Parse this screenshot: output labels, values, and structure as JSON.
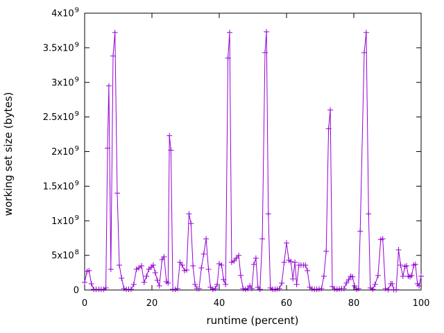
{
  "figure": {
    "background": "#ffffff",
    "axis_color": "#000000",
    "text_color": "#000000",
    "line_color": "#9400d3"
  },
  "chart_data": {
    "type": "line",
    "style": "linespoints",
    "marker": "plus",
    "grid": false,
    "legend": "none",
    "title": "",
    "xlabel": "runtime (percent)",
    "ylabel": "working set size (bytes)",
    "xlim": [
      0,
      100
    ],
    "ylim": [
      0,
      4000000000.0
    ],
    "x_ticks": [
      {
        "value": 0,
        "label": "0"
      },
      {
        "value": 20,
        "label": "20"
      },
      {
        "value": 40,
        "label": "40"
      },
      {
        "value": 60,
        "label": "60"
      },
      {
        "value": 80,
        "label": "80"
      },
      {
        "value": 100,
        "label": "100"
      }
    ],
    "y_ticks": [
      {
        "value": 0,
        "label": "0"
      },
      {
        "value": 500000000.0,
        "label": "5x10^8"
      },
      {
        "value": 1000000000.0,
        "label": "1x10^9"
      },
      {
        "value": 1500000000.0,
        "label": "1.5x10^9"
      },
      {
        "value": 2000000000.0,
        "label": "2x10^9"
      },
      {
        "value": 2500000000.0,
        "label": "2.5x10^9"
      },
      {
        "value": 3000000000.0,
        "label": "3x10^9"
      },
      {
        "value": 3500000000.0,
        "label": "3.5x10^9"
      },
      {
        "value": 4000000000.0,
        "label": "4x10^9"
      }
    ],
    "series": [
      {
        "points": [
          [
            0.0,
            110000000.0
          ],
          [
            0.7,
            270000000.0
          ],
          [
            1.3,
            280000000.0
          ],
          [
            2.0,
            90000000.0
          ],
          [
            2.7,
            10000000.0
          ],
          [
            3.4,
            10000000.0
          ],
          [
            4.2,
            10000000.0
          ],
          [
            4.9,
            10000000.0
          ],
          [
            5.7,
            10000000.0
          ],
          [
            6.3,
            30000000.0
          ],
          [
            6.8,
            2050000000.0
          ],
          [
            7.2,
            2950000000.0
          ],
          [
            7.8,
            300000000.0
          ],
          [
            8.45,
            3380000000.0
          ],
          [
            9.0,
            3720000000.0
          ],
          [
            9.7,
            1400000000.0
          ],
          [
            10.3,
            360000000.0
          ],
          [
            11.0,
            170000000.0
          ],
          [
            11.7,
            20000000.0
          ],
          [
            12.4,
            10000000.0
          ],
          [
            13.1,
            10000000.0
          ],
          [
            13.8,
            10000000.0
          ],
          [
            14.6,
            80000000.0
          ],
          [
            15.4,
            300000000.0
          ],
          [
            16.1,
            320000000.0
          ],
          [
            16.9,
            350000000.0
          ],
          [
            17.7,
            110000000.0
          ],
          [
            18.4,
            200000000.0
          ],
          [
            19.1,
            300000000.0
          ],
          [
            19.8,
            330000000.0
          ],
          [
            20.4,
            360000000.0
          ],
          [
            21.0,
            250000000.0
          ],
          [
            21.6,
            140000000.0
          ],
          [
            22.2,
            60000000.0
          ],
          [
            23.0,
            440000000.0
          ],
          [
            23.6,
            480000000.0
          ],
          [
            24.3,
            120000000.0
          ],
          [
            24.8,
            100000000.0
          ],
          [
            25.2,
            2230000000.0
          ],
          [
            25.65,
            2020000000.0
          ],
          [
            26.2,
            10000000.0
          ],
          [
            26.9,
            10000000.0
          ],
          [
            27.6,
            20000000.0
          ],
          [
            28.3,
            400000000.0
          ],
          [
            29.0,
            360000000.0
          ],
          [
            29.7,
            280000000.0
          ],
          [
            30.3,
            290000000.0
          ],
          [
            31.0,
            1100000000.0
          ],
          [
            31.6,
            960000000.0
          ],
          [
            32.2,
            350000000.0
          ],
          [
            32.8,
            80000000.0
          ],
          [
            33.4,
            20000000.0
          ],
          [
            34.0,
            20000000.0
          ],
          [
            34.7,
            320000000.0
          ],
          [
            35.4,
            520000000.0
          ],
          [
            36.1,
            740000000.0
          ],
          [
            36.8,
            300000000.0
          ],
          [
            37.4,
            40000000.0
          ],
          [
            38.1,
            10000000.0
          ],
          [
            38.8,
            20000000.0
          ],
          [
            39.4,
            80000000.0
          ],
          [
            40.0,
            380000000.0
          ],
          [
            40.7,
            360000000.0
          ],
          [
            41.3,
            150000000.0
          ],
          [
            41.9,
            80000000.0
          ],
          [
            42.6,
            3350000000.0
          ],
          [
            43.1,
            3720000000.0
          ],
          [
            43.7,
            400000000.0
          ],
          [
            44.4,
            420000000.0
          ],
          [
            45.1,
            460000000.0
          ],
          [
            45.8,
            500000000.0
          ],
          [
            46.4,
            210000000.0
          ],
          [
            47.1,
            20000000.0
          ],
          [
            47.8,
            10000000.0
          ],
          [
            48.5,
            20000000.0
          ],
          [
            49.1,
            60000000.0
          ],
          [
            49.7,
            20000000.0
          ],
          [
            50.3,
            370000000.0
          ],
          [
            50.9,
            460000000.0
          ],
          [
            51.5,
            40000000.0
          ],
          [
            52.1,
            10000000.0
          ],
          [
            52.8,
            740000000.0
          ],
          [
            53.6,
            3430000000.0
          ],
          [
            54.05,
            3730000000.0
          ],
          [
            54.6,
            1100000000.0
          ],
          [
            55.2,
            30000000.0
          ],
          [
            55.9,
            10000000.0
          ],
          [
            56.6,
            10000000.0
          ],
          [
            57.2,
            15000000.0
          ],
          [
            57.9,
            20000000.0
          ],
          [
            58.6,
            100000000.0
          ],
          [
            59.3,
            400000000.0
          ],
          [
            60.0,
            680000000.0
          ],
          [
            60.7,
            430000000.0
          ],
          [
            61.3,
            410000000.0
          ],
          [
            61.9,
            160000000.0
          ],
          [
            62.5,
            400000000.0
          ],
          [
            63.0,
            80000000.0
          ],
          [
            63.7,
            360000000.0
          ],
          [
            64.3,
            360000000.0
          ],
          [
            65.0,
            360000000.0
          ],
          [
            65.6,
            360000000.0
          ],
          [
            66.2,
            280000000.0
          ],
          [
            66.9,
            40000000.0
          ],
          [
            67.6,
            15000000.0
          ],
          [
            68.3,
            10000000.0
          ],
          [
            69.0,
            10000000.0
          ],
          [
            69.7,
            15000000.0
          ],
          [
            70.4,
            20000000.0
          ],
          [
            71.1,
            200000000.0
          ],
          [
            71.8,
            560000000.0
          ],
          [
            72.5,
            2330000000.0
          ],
          [
            73.0,
            2600000000.0
          ],
          [
            73.6,
            50000000.0
          ],
          [
            74.3,
            15000000.0
          ],
          [
            75.0,
            10000000.0
          ],
          [
            75.7,
            15000000.0
          ],
          [
            76.4,
            20000000.0
          ],
          [
            77.1,
            20000000.0
          ],
          [
            77.8,
            100000000.0
          ],
          [
            78.5,
            150000000.0
          ],
          [
            79.1,
            200000000.0
          ],
          [
            79.6,
            190000000.0
          ],
          [
            80.2,
            60000000.0
          ],
          [
            80.8,
            10000000.0
          ],
          [
            81.4,
            20000000.0
          ],
          [
            81.9,
            850000000.0
          ],
          [
            83.1,
            3430000000.0
          ],
          [
            83.7,
            3720000000.0
          ],
          [
            84.4,
            1100000000.0
          ],
          [
            84.9,
            30000000.0
          ],
          [
            85.6,
            10000000.0
          ],
          [
            86.3,
            80000000.0
          ],
          [
            87.2,
            210000000.0
          ],
          [
            88.0,
            730000000.0
          ],
          [
            88.6,
            740000000.0
          ],
          [
            89.4,
            20000000.0
          ],
          [
            90.2,
            5000000.0
          ],
          [
            91.0,
            90000000.0
          ],
          [
            91.4,
            90000000.0
          ],
          [
            91.9,
            5000000.0
          ],
          [
            92.6,
            5000000.0
          ],
          [
            93.3,
            580000000.0
          ],
          [
            93.9,
            360000000.0
          ],
          [
            94.6,
            200000000.0
          ],
          [
            95.2,
            340000000.0
          ],
          [
            95.7,
            350000000.0
          ],
          [
            96.2,
            200000000.0
          ],
          [
            96.7,
            190000000.0
          ],
          [
            97.2,
            210000000.0
          ],
          [
            97.8,
            360000000.0
          ],
          [
            98.3,
            370000000.0
          ],
          [
            98.9,
            90000000.0
          ],
          [
            99.4,
            60000000.0
          ],
          [
            100.0,
            200000000.0
          ]
        ]
      }
    ]
  }
}
